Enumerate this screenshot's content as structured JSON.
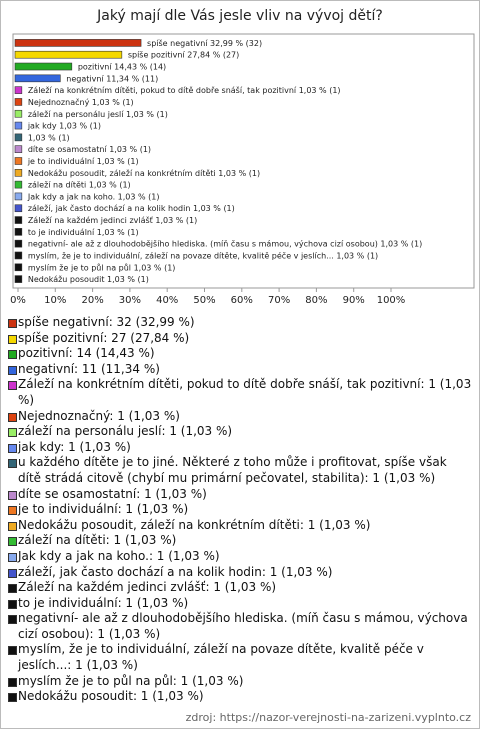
{
  "chart_data": {
    "type": "bar",
    "orientation": "horizontal",
    "title": "Jaký mají dle Vás jesle vliv na vývoj dětí?",
    "values": [
      32.99,
      27.84,
      14.43,
      11.34,
      1.03,
      1.03,
      1.03,
      1.03,
      1.03,
      1.03,
      1.03,
      1.03,
      1.03,
      1.03,
      1.03,
      1.03,
      1.03,
      1.03,
      1.03,
      1.03,
      1.03
    ],
    "value_labels": [
      "spíše negativní 32,99 % (32)",
      "spíše pozitivní 27,84 % (27)",
      "pozitivní 14,43 % (14)",
      "negativní 11,34 % (11)",
      "Záleží na konkrétním dítěti, pokud to dítě dobře snáší, tak pozitivní 1,03 % (1)",
      "Nejednoznačný 1,03 % (1)",
      "záleží na personálu jeslí 1,03 % (1)",
      "jak kdy 1,03 % (1)",
      "1,03 % (1)",
      "díte se osamostatní 1,03 % (1)",
      "je to individuální 1,03 % (1)",
      "Nedokážu posoudit, záleží na konkrétním dítěti 1,03 % (1)",
      "záleží na dítěti 1,03 % (1)",
      "Jak kdy a jak na koho. 1,03 % (1)",
      "záleží, jak často dochází a na kolik hodin 1,03 % (1)",
      "Záleží na každém jedinci zvlášť 1,03 % (1)",
      "to je individuální 1,03 % (1)",
      "negativní- ale až z dlouhodobějšího hlediska. (míň času s mámou, výchova cizí osobou) 1,03 % (1)",
      "myslím, že je to individuální, záleží na povaze dítěte, kvalitě péče v jeslích... 1,03 % (1)",
      "myslím že je to půl na půl 1,03 % (1)",
      "Nedokážu posoudit 1,03 % (1)"
    ],
    "legend_labels": [
      "spíše negativní: 32 (32,99 %)",
      "spíše pozitivní: 27 (27,84 %)",
      "pozitivní: 14 (14,43 %)",
      "negativní: 11 (11,34 %)",
      "Záleží na konkrétním dítěti, pokud to dítě dobře snáší, tak pozitivní: 1 (1,03 %)",
      "Nejednoznačný: 1 (1,03 %)",
      "záleží na personálu jeslí: 1 (1,03 %)",
      "jak kdy: 1 (1,03 %)",
      "u každého dítěte je to jiné. Některé z toho může i profitovat, spíše však dítě strádá citově (chybí mu primární pečovatel, stabilita): 1 (1,03 %)",
      "díte se osamostatní: 1 (1,03 %)",
      "je to individuální: 1 (1,03 %)",
      "Nedokážu posoudit, záleží na konkrétním dítěti: 1 (1,03 %)",
      "záleží na dítěti: 1 (1,03 %)",
      "Jak kdy a jak na koho.: 1 (1,03 %)",
      "záleží, jak často dochází a na kolik hodin: 1 (1,03 %)",
      "Záleží na každém jedinci zvlášť: 1 (1,03 %)",
      "to je individuální: 1 (1,03 %)",
      "negativní- ale až z dlouhodobějšího hlediska. (míň času s mámou, výchova cizí osobou): 1 (1,03 %)",
      "myslím, že je to individuální, záleží na povaze dítěte, kvalitě péče v jeslích...: 1 (1,03 %)",
      "myslím že je to půl na půl: 1 (1,03 %)",
      "Nedokážu posoudit: 1 (1,03 %)"
    ],
    "colors": [
      "#cc3311",
      "#f5d800",
      "#22aa22",
      "#3366dd",
      "#cc33cc",
      "#dd4411",
      "#99ee66",
      "#6688ee",
      "#336677",
      "#bb88cc",
      "#ee7722",
      "#eeaa22",
      "#33bb33",
      "#88aaee",
      "#4455cc",
      "#111111",
      "#111111",
      "#111111",
      "#111111",
      "#111111",
      "#111111"
    ],
    "xlim": [
      0,
      100
    ],
    "xticks": [
      {
        "value": 0,
        "label": "0%"
      },
      {
        "value": 10,
        "label": "10%"
      },
      {
        "value": 20,
        "label": "20%"
      },
      {
        "value": 30,
        "label": "30%"
      },
      {
        "value": 40,
        "label": "40%"
      },
      {
        "value": 50,
        "label": "50%"
      },
      {
        "value": 60,
        "label": "60%"
      },
      {
        "value": 70,
        "label": "70%"
      },
      {
        "value": 80,
        "label": "80%"
      },
      {
        "value": 90,
        "label": "90%"
      },
      {
        "value": 100,
        "label": "100%"
      }
    ],
    "source": "zdroj: https://nazor-verejnosti-na-zarizeni.vyplnto.cz"
  }
}
